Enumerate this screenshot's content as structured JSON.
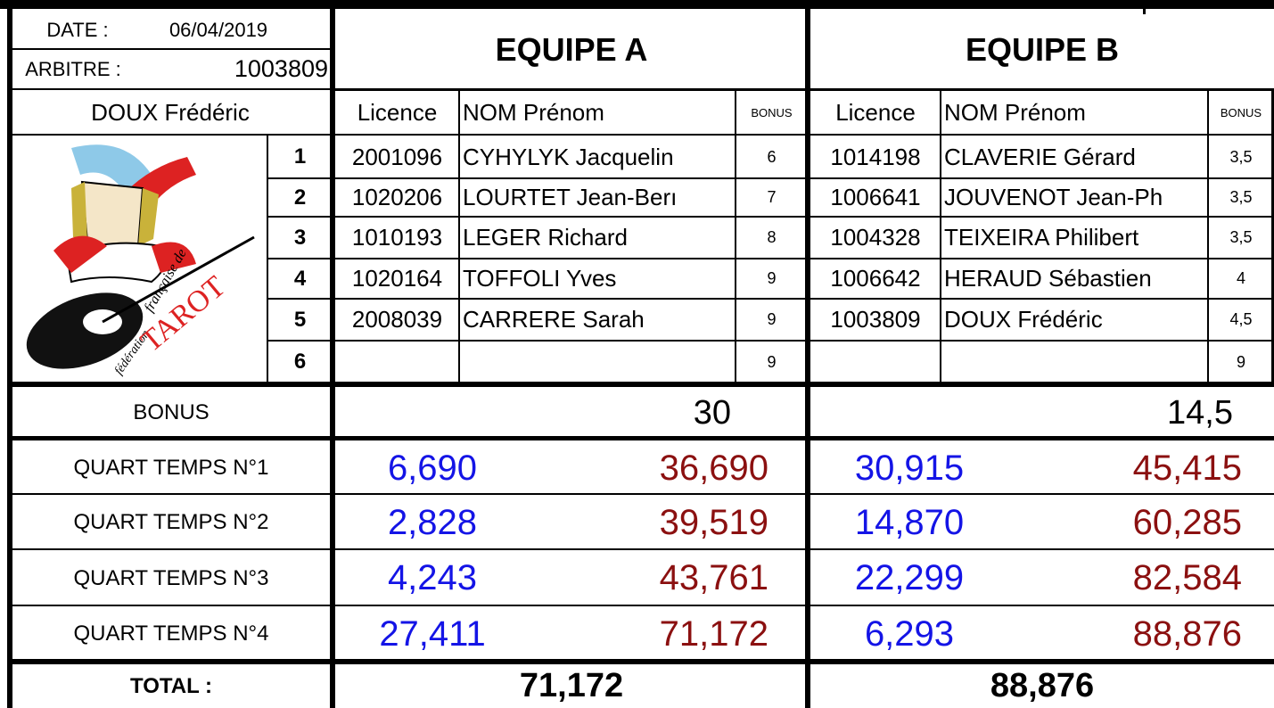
{
  "header": {
    "date_label": "DATE :",
    "date": "06/04/2019",
    "referee_label": "ARBITRE :",
    "referee_licence": "1003809",
    "referee_name": "DOUX Frédéric"
  },
  "logo": {
    "line1": "française de",
    "line2": "fédération",
    "brand": "TAROT"
  },
  "row_numbers": [
    "1",
    "2",
    "3",
    "4",
    "5",
    "6"
  ],
  "labels": {
    "bonus": "BONUS",
    "quarters": [
      "QUART TEMPS N°1",
      "QUART TEMPS N°2",
      "QUART TEMPS N°3",
      "QUART TEMPS N°4"
    ],
    "total": "TOTAL :"
  },
  "teams": [
    {
      "name": "EQUIPE A",
      "columns": {
        "licence": "Licence",
        "name": "NOM Prénom",
        "bonus": "BONUS"
      },
      "players": [
        {
          "licence": "2001096",
          "name": "CYHYLYK Jacquelin",
          "bonus": "6"
        },
        {
          "licence": "1020206",
          "name": "LOURTET Jean-Berı",
          "bonus": "7"
        },
        {
          "licence": "1010193",
          "name": "LEGER Richard",
          "bonus": "8"
        },
        {
          "licence": "1020164",
          "name": "TOFFOLI Yves",
          "bonus": "9"
        },
        {
          "licence": "2008039",
          "name": "CARRERE Sarah",
          "bonus": "9"
        },
        {
          "licence": "",
          "name": "",
          "bonus": "9"
        }
      ],
      "bonus_total": "30",
      "quarters": [
        {
          "score": "6,690",
          "cumulative": "36,690"
        },
        {
          "score": "2,828",
          "cumulative": "39,519"
        },
        {
          "score": "4,243",
          "cumulative": "43,761"
        },
        {
          "score": "27,411",
          "cumulative": "71,172"
        }
      ],
      "total": "71,172"
    },
    {
      "name": "EQUIPE B",
      "columns": {
        "licence": "Licence",
        "name": "NOM Prénom",
        "bonus": "BONUS"
      },
      "players": [
        {
          "licence": "1014198",
          "name": "CLAVERIE Gérard",
          "bonus": "3,5"
        },
        {
          "licence": "1006641",
          "name": "JOUVENOT Jean-Ph",
          "bonus": "3,5"
        },
        {
          "licence": "1004328",
          "name": "TEIXEIRA Philibert",
          "bonus": "3,5"
        },
        {
          "licence": "1006642",
          "name": "HERAUD Sébastien",
          "bonus": "4"
        },
        {
          "licence": "1003809",
          "name": "DOUX Frédéric",
          "bonus": "4,5"
        },
        {
          "licence": "",
          "name": "",
          "bonus": "9"
        }
      ],
      "bonus_total": "14,5",
      "quarters": [
        {
          "score": "30,915",
          "cumulative": "45,415"
        },
        {
          "score": "14,870",
          "cumulative": "60,285"
        },
        {
          "score": "22,299",
          "cumulative": "82,584"
        },
        {
          "score": "6,293",
          "cumulative": "88,876"
        }
      ],
      "total": "88,876"
    }
  ]
}
